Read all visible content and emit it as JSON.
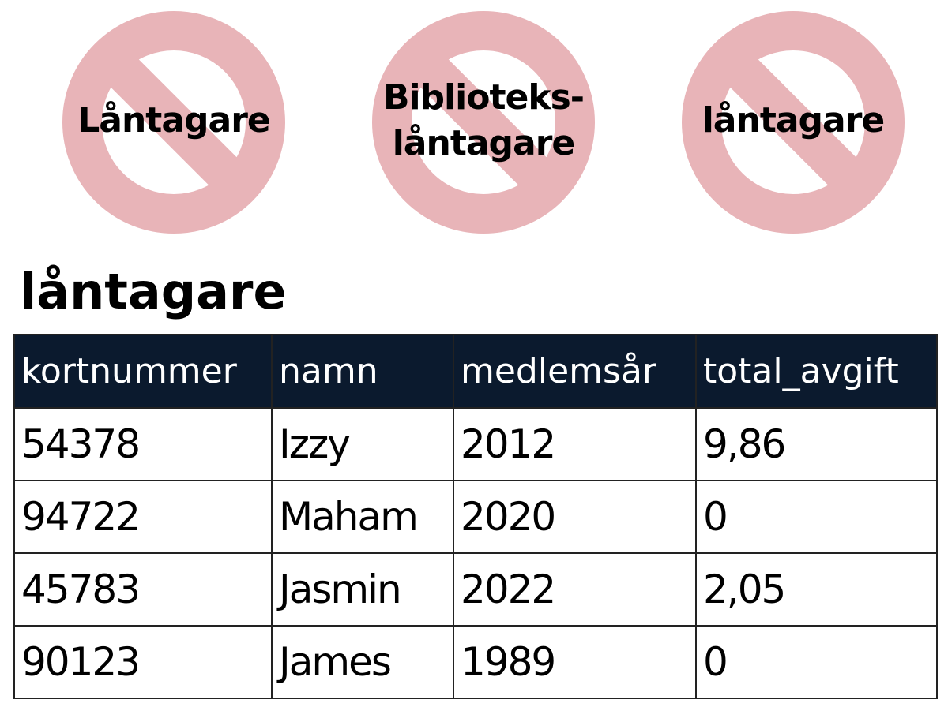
{
  "signs": [
    {
      "lines": [
        "Låntagare"
      ]
    },
    {
      "lines": [
        "Biblioteks-",
        "låntagare"
      ]
    },
    {
      "lines": [
        "låntagare"
      ]
    }
  ],
  "title": "låntagare",
  "table": {
    "header": [
      "kortnummer",
      "namn",
      "medlemsår",
      "total_avgift"
    ],
    "rows": [
      [
        "54378",
        "Izzy",
        "2012",
        "9,86"
      ],
      [
        "94722",
        "Maham",
        "2020",
        "0"
      ],
      [
        "45783",
        "Jasmin",
        "2022",
        "2,05"
      ],
      [
        "90123",
        "James",
        "1989",
        "0"
      ]
    ]
  }
}
